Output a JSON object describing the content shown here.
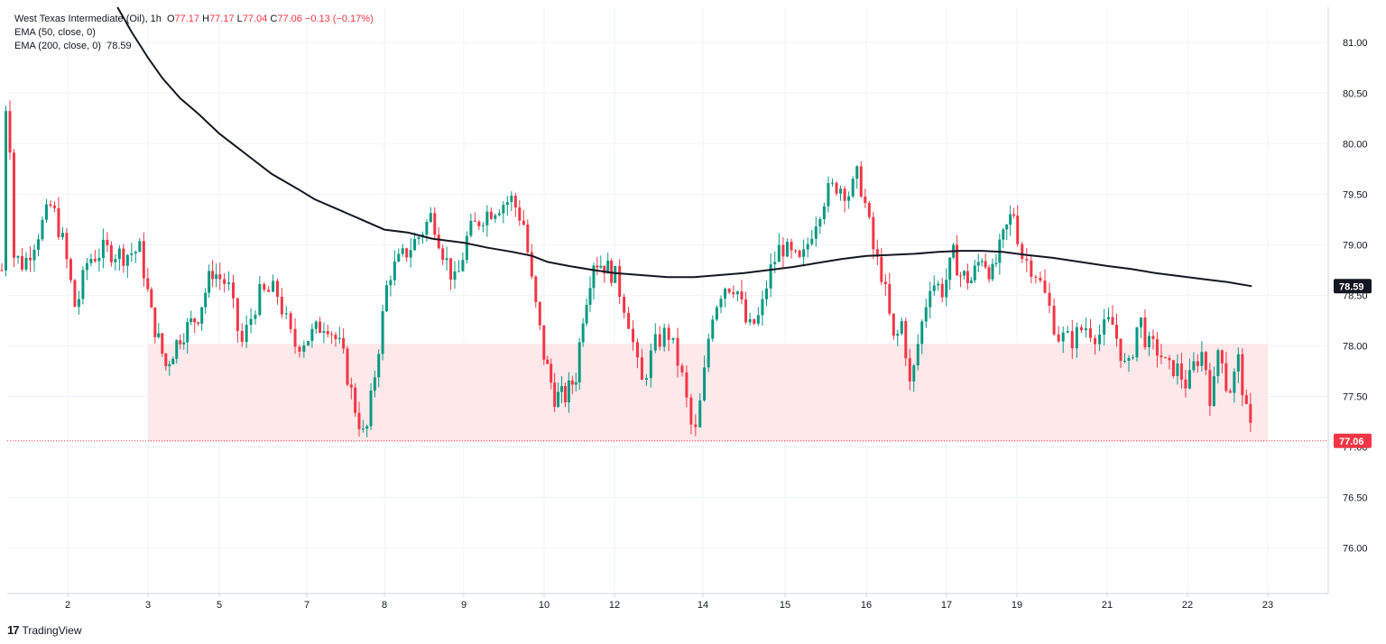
{
  "legend": {
    "symbol": "West Texas Intermediate (Oil), 1h",
    "o_label": "O",
    "o": "77.17",
    "h_label": "H",
    "h": "77.17",
    "l_label": "L",
    "l": "77.04",
    "c_label": "C",
    "c": "77.06",
    "change": "−0.13 (−0.17%)",
    "ema50": "EMA (50, close, 0)",
    "ema200": "EMA (200, close, 0)",
    "ema200_value": "78.59"
  },
  "brand": {
    "logo": "17",
    "name": "TradingView"
  },
  "colors": {
    "up": "#089981",
    "down": "#f23645",
    "ema": "#131722",
    "zone": "#fde8ea",
    "grid": "#f0f3fa"
  },
  "chart_data": {
    "type": "candlestick",
    "title": "West Texas Intermediate (Oil), 1h",
    "ylim": [
      75.55,
      81.35
    ],
    "y_ticks": [
      "76.00",
      "76.50",
      "77.00",
      "77.50",
      "78.00",
      "78.50",
      "79.00",
      "79.50",
      "80.00",
      "80.50",
      "81.00"
    ],
    "x_ticks": [
      "2",
      "3",
      "5",
      "7",
      "8",
      "9",
      "10",
      "12",
      "14",
      "15",
      "16",
      "17",
      "19",
      "21",
      "22",
      "23"
    ],
    "x_tick_index": [
      0,
      1,
      2,
      3,
      4,
      5,
      6,
      7,
      8,
      9,
      10,
      11,
      12,
      13,
      14,
      15
    ],
    "last_price": "77.06",
    "ema200_label": "78.59",
    "support_zone": {
      "from": 77.05,
      "to": 78.02,
      "start_day_index": 1,
      "end_day_index": 15
    },
    "close_path": [
      [
        -0.82,
        78.75
      ],
      [
        -0.78,
        80.3
      ],
      [
        -0.74,
        80.6
      ],
      [
        -0.68,
        78.9
      ],
      [
        -0.55,
        78.8
      ],
      [
        -0.35,
        79.15
      ],
      [
        -0.2,
        79.4
      ],
      [
        -0.05,
        79.0
      ],
      [
        0.1,
        78.35
      ],
      [
        0.25,
        78.85
      ],
      [
        0.45,
        78.95
      ],
      [
        0.7,
        78.9
      ],
      [
        0.9,
        78.95
      ],
      [
        1.05,
        78.3
      ],
      [
        1.25,
        77.8
      ],
      [
        1.45,
        78.1
      ],
      [
        1.7,
        78.3
      ],
      [
        1.9,
        78.75
      ],
      [
        2.1,
        78.6
      ],
      [
        2.25,
        78.0
      ],
      [
        2.45,
        78.5
      ],
      [
        2.65,
        78.55
      ],
      [
        2.85,
        78.0
      ],
      [
        3.05,
        78.1
      ],
      [
        3.25,
        78.25
      ],
      [
        3.45,
        77.95
      ],
      [
        3.6,
        77.45
      ],
      [
        3.75,
        77.05
      ],
      [
        3.9,
        77.85
      ],
      [
        4.05,
        78.7
      ],
      [
        4.2,
        78.85
      ],
      [
        4.45,
        79.1
      ],
      [
        4.6,
        79.3
      ],
      [
        4.75,
        78.9
      ],
      [
        4.9,
        78.6
      ],
      [
        5.05,
        79.1
      ],
      [
        5.25,
        79.3
      ],
      [
        5.45,
        79.4
      ],
      [
        5.6,
        79.45
      ],
      [
        5.75,
        79.2
      ],
      [
        5.85,
        78.6
      ],
      [
        6.0,
        77.9
      ],
      [
        6.15,
        77.5
      ],
      [
        6.3,
        77.5
      ],
      [
        6.45,
        77.7
      ],
      [
        6.55,
        78.3
      ],
      [
        6.7,
        78.85
      ],
      [
        6.85,
        78.8
      ],
      [
        7.0,
        78.7
      ],
      [
        7.15,
        78.3
      ],
      [
        7.3,
        77.6
      ],
      [
        7.45,
        78.0
      ],
      [
        7.6,
        78.15
      ],
      [
        7.75,
        77.75
      ],
      [
        7.9,
        77.05
      ],
      [
        8.0,
        77.6
      ],
      [
        8.1,
        78.3
      ],
      [
        8.25,
        78.6
      ],
      [
        8.4,
        78.6
      ],
      [
        8.55,
        78.15
      ],
      [
        8.7,
        78.3
      ],
      [
        8.8,
        78.7
      ],
      [
        8.95,
        79.0
      ],
      [
        9.05,
        78.9
      ],
      [
        9.2,
        78.8
      ],
      [
        9.35,
        79.2
      ],
      [
        9.5,
        79.5
      ],
      [
        9.65,
        79.6
      ],
      [
        9.8,
        79.5
      ],
      [
        9.9,
        79.7
      ],
      [
        10.0,
        79.35
      ],
      [
        10.1,
        78.9
      ],
      [
        10.2,
        78.7
      ],
      [
        10.35,
        78.0
      ],
      [
        10.45,
        78.25
      ],
      [
        10.55,
        77.55
      ],
      [
        10.65,
        78.05
      ],
      [
        10.8,
        78.65
      ],
      [
        10.95,
        78.55
      ],
      [
        11.1,
        78.9
      ],
      [
        11.2,
        78.7
      ],
      [
        11.35,
        78.65
      ],
      [
        11.5,
        78.9
      ],
      [
        11.65,
        78.7
      ],
      [
        11.8,
        79.05
      ],
      [
        11.95,
        79.35
      ],
      [
        12.05,
        78.9
      ],
      [
        12.2,
        78.75
      ],
      [
        12.35,
        78.4
      ],
      [
        12.45,
        78.1
      ],
      [
        12.6,
        78.05
      ],
      [
        12.75,
        78.2
      ],
      [
        12.9,
        78.1
      ],
      [
        13.05,
        78.25
      ],
      [
        13.15,
        78.0
      ],
      [
        13.25,
        77.7
      ],
      [
        13.4,
        78.3
      ],
      [
        13.5,
        78.0
      ],
      [
        13.65,
        77.95
      ],
      [
        13.75,
        77.75
      ],
      [
        13.85,
        77.8
      ],
      [
        14.0,
        77.6
      ],
      [
        14.1,
        77.85
      ],
      [
        14.2,
        77.95
      ],
      [
        14.3,
        77.4
      ],
      [
        14.4,
        78.1
      ],
      [
        14.5,
        77.5
      ],
      [
        14.6,
        77.75
      ],
      [
        14.65,
        77.9
      ],
      [
        14.7,
        77.45
      ],
      [
        14.77,
        77.18
      ],
      [
        14.83,
        77.1
      ]
    ],
    "ema200": [
      [
        0.62,
        81.35
      ],
      [
        0.8,
        81.1
      ],
      [
        1.0,
        80.85
      ],
      [
        1.2,
        80.65
      ],
      [
        1.45,
        80.45
      ],
      [
        1.7,
        80.3
      ],
      [
        2.0,
        80.1
      ],
      [
        2.3,
        79.9
      ],
      [
        2.6,
        79.7
      ],
      [
        2.9,
        79.55
      ],
      [
        3.1,
        79.45
      ],
      [
        3.4,
        79.35
      ],
      [
        3.7,
        79.25
      ],
      [
        4.0,
        79.15
      ],
      [
        4.3,
        79.12
      ],
      [
        4.6,
        79.06
      ],
      [
        5.0,
        79.02
      ],
      [
        5.3,
        78.97
      ],
      [
        5.6,
        78.93
      ],
      [
        5.85,
        78.89
      ],
      [
        6.05,
        78.83
      ],
      [
        6.35,
        78.79
      ],
      [
        6.7,
        78.75
      ],
      [
        7.0,
        78.72
      ],
      [
        7.3,
        78.7
      ],
      [
        7.6,
        78.68
      ],
      [
        7.9,
        78.68
      ],
      [
        8.2,
        78.7
      ],
      [
        8.5,
        78.72
      ],
      [
        8.8,
        78.75
      ],
      [
        9.1,
        78.78
      ],
      [
        9.4,
        78.82
      ],
      [
        9.7,
        78.86
      ],
      [
        10.0,
        78.89
      ],
      [
        10.3,
        78.9
      ],
      [
        10.6,
        78.91
      ],
      [
        10.9,
        78.93
      ],
      [
        11.2,
        78.94
      ],
      [
        11.5,
        78.94
      ],
      [
        11.8,
        78.93
      ],
      [
        12.1,
        78.9
      ],
      [
        12.4,
        78.87
      ],
      [
        12.7,
        78.83
      ],
      [
        13.0,
        78.79
      ],
      [
        13.3,
        78.76
      ],
      [
        13.6,
        78.72
      ],
      [
        13.9,
        78.69
      ],
      [
        14.2,
        78.66
      ],
      [
        14.5,
        78.63
      ],
      [
        14.8,
        78.59
      ]
    ]
  }
}
